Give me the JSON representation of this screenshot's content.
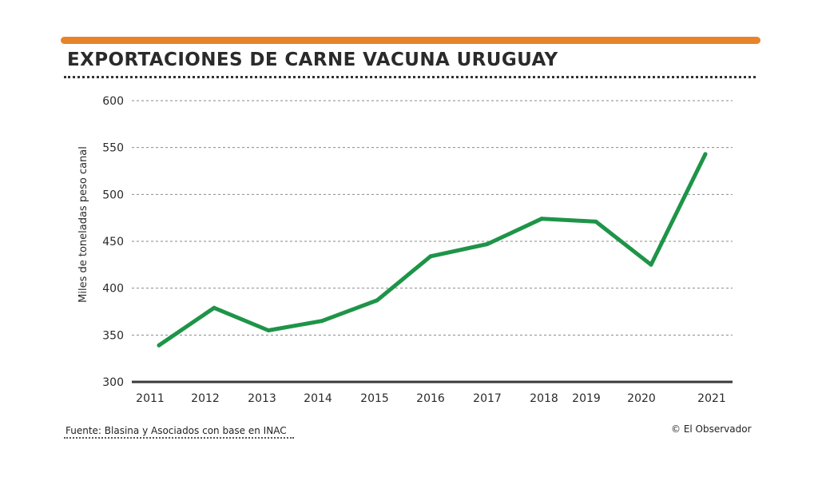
{
  "header": {
    "accent_color": "#e8832a"
  },
  "footer": {
    "source": "Fuente: Blasina y Asociados con base en INAC",
    "credit": "© El Observador"
  },
  "chart_data": {
    "type": "line",
    "title": "EXPORTACIONES DE CARNE VACUNA URUGUAY",
    "xlabel": "",
    "ylabel": "Miles de toneladas peso canal",
    "x": [
      "2011",
      "2012",
      "2013",
      "2014",
      "2015",
      "2016",
      "2017",
      "2018",
      "2019",
      "2020",
      "2021"
    ],
    "series": [
      {
        "name": "Exportaciones",
        "color": "#1e9448",
        "values": [
          339,
          379,
          355,
          365,
          387,
          434,
          447,
          474,
          471,
          425,
          543
        ]
      }
    ],
    "ylim": [
      300,
      600
    ],
    "yticks": [
      300,
      350,
      400,
      450,
      500,
      550,
      600
    ],
    "grid": true
  }
}
